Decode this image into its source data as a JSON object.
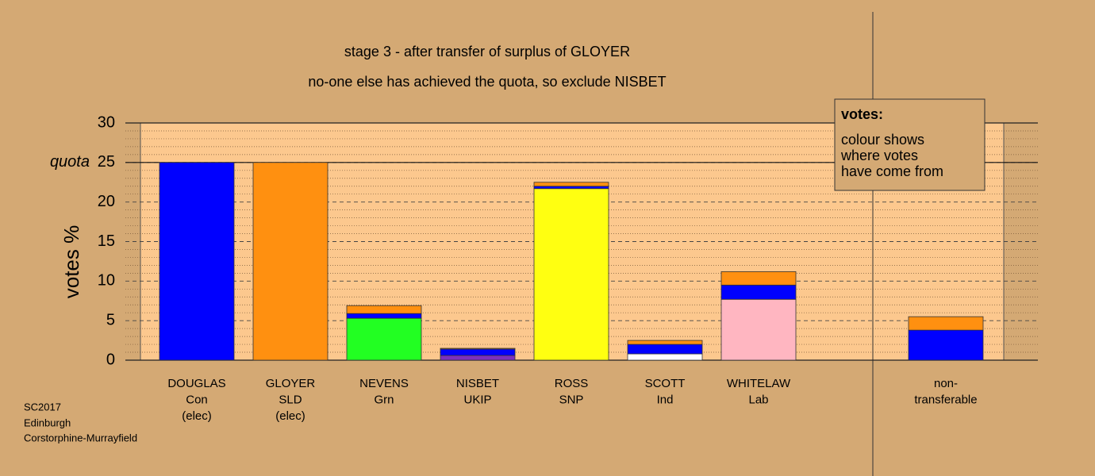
{
  "chart_data": {
    "type": "stacked-bar",
    "title": "stage 3 - after transfer of surplus of GLOYER",
    "subtitle": "no-one else has achieved the quota, so exclude NISBET",
    "y_label": "votes %",
    "ylim": [
      0,
      30
    ],
    "yticks": [
      0,
      5,
      10,
      15,
      20,
      25,
      30
    ],
    "grid": true,
    "quota": {
      "label": "quota",
      "value": 25
    },
    "categories": [
      [
        "DOUGLAS",
        "Con",
        "(elec)"
      ],
      [
        "GLOYER",
        "SLD",
        "(elec)"
      ],
      [
        "NEVENS",
        "Grn"
      ],
      [
        "NISBET",
        "UKIP"
      ],
      [
        "ROSS",
        "SNP"
      ],
      [
        "SCOTT",
        "Ind"
      ],
      [
        "WHITELAW",
        "Lab"
      ],
      null,
      [
        "non-",
        "transferable"
      ]
    ],
    "series": [
      {
        "color": "#7b2fbf",
        "values": [
          null,
          null,
          null,
          0.6,
          null,
          null,
          null,
          null,
          null
        ]
      },
      {
        "color": "#ffffff",
        "values": [
          null,
          null,
          null,
          null,
          null,
          0.8,
          null,
          null,
          null
        ]
      },
      {
        "color": "#ffb6c1",
        "values": [
          null,
          null,
          null,
          null,
          null,
          null,
          7.7,
          null,
          null
        ]
      },
      {
        "color": "#22ff22",
        "values": [
          null,
          null,
          5.3,
          null,
          null,
          null,
          null,
          null,
          null
        ]
      },
      {
        "color": "#ffff11",
        "values": [
          null,
          null,
          null,
          null,
          21.7,
          null,
          null,
          null,
          null
        ]
      },
      {
        "color": "#0000ff",
        "values": [
          25,
          null,
          0.6,
          0.8,
          0.3,
          1.2,
          1.8,
          null,
          3.8
        ]
      },
      {
        "color": "#ff9010",
        "values": [
          null,
          25,
          1.0,
          0.1,
          0.5,
          0.5,
          1.7,
          null,
          1.7
        ]
      }
    ],
    "legend_box": {
      "title": "votes:",
      "lines": [
        "colour shows",
        "where votes",
        "have come from"
      ]
    },
    "footer": [
      "SC2017",
      "Edinburgh",
      "Corstorphine-Murrayfield"
    ]
  }
}
